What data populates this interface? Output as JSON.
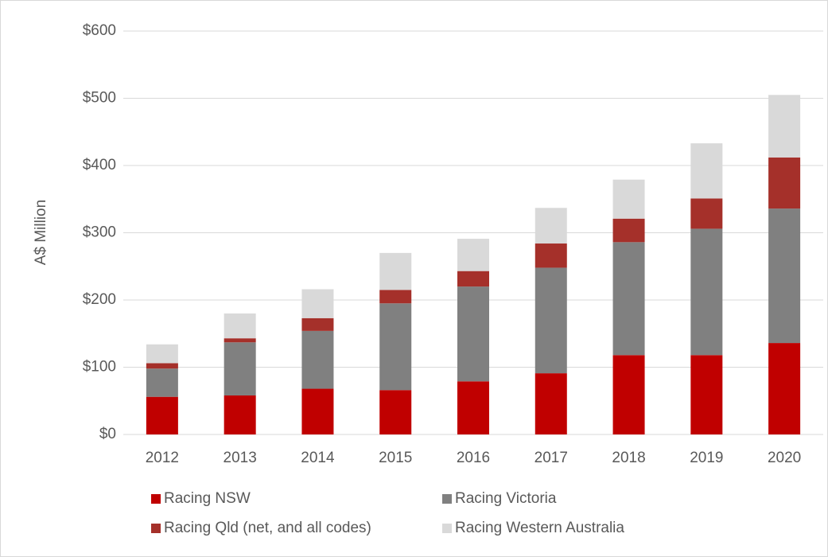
{
  "chart_data": {
    "type": "stacked_bar",
    "y_label": "A$ Million",
    "categories": [
      "2012",
      "2013",
      "2014",
      "2015",
      "2016",
      "2017",
      "2018",
      "2019",
      "2020"
    ],
    "series": [
      {
        "name": "Racing NSW",
        "color": "#c00000",
        "values": [
          56,
          58,
          68,
          66,
          79,
          91,
          118,
          118,
          136
        ]
      },
      {
        "name": "Racing Victoria",
        "color": "#808080",
        "values": [
          42,
          79,
          86,
          129,
          141,
          157,
          168,
          188,
          200
        ]
      },
      {
        "name": "Racing Qld (net, and all codes)",
        "color": "#a5302a",
        "values": [
          8,
          6,
          19,
          20,
          23,
          36,
          35,
          45,
          76
        ]
      },
      {
        "name": "Racing Western Australia",
        "color": "#d9d9d9",
        "values": [
          28,
          37,
          43,
          55,
          48,
          53,
          58,
          82,
          93
        ]
      }
    ],
    "ylim": [
      0,
      600
    ],
    "yticks": [
      {
        "value": 0,
        "label": "$0"
      },
      {
        "value": 100,
        "label": "$100"
      },
      {
        "value": 200,
        "label": "$200"
      },
      {
        "value": 300,
        "label": "$300"
      },
      {
        "value": 400,
        "label": "$400"
      },
      {
        "value": 500,
        "label": "$500"
      },
      {
        "value": 600,
        "label": "$600"
      }
    ],
    "grid": true
  }
}
